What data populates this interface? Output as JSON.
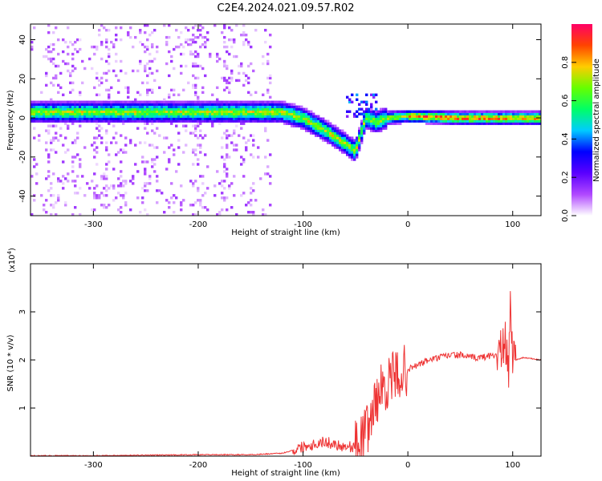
{
  "title": "C2E4.2024.021.09.57.R02",
  "chart_data": [
    {
      "type": "heatmap",
      "xlabel": "Height of straight line (km)",
      "ylabel": "Frequency (Hz)",
      "xlim": [
        -360,
        127
      ],
      "ylim": [
        -50,
        48
      ],
      "xticks": [
        -300,
        -200,
        -100,
        0,
        100
      ],
      "yticks": [
        -40,
        -20,
        0,
        20,
        40
      ],
      "colorbar": {
        "label": "Normalized spectral amplitude",
        "range": [
          0,
          1
        ],
        "ticks": [
          0.0,
          0.2,
          0.4,
          0.6,
          0.8
        ],
        "colormap": [
          "#ffffff",
          "#b048ff",
          "#5a00ff",
          "#0000ff",
          "#00ccff",
          "#00ff66",
          "#66ff00",
          "#ffcc00",
          "#ff4400",
          "#ff0066"
        ]
      },
      "ridge": [
        {
          "x": -350,
          "y": 3
        },
        {
          "x": -300,
          "y": 3
        },
        {
          "x": -200,
          "y": 3
        },
        {
          "x": -150,
          "y": 3
        },
        {
          "x": -120,
          "y": 3
        },
        {
          "x": -100,
          "y": 0
        },
        {
          "x": -80,
          "y": -6
        },
        {
          "x": -60,
          "y": -13
        },
        {
          "x": -50,
          "y": -17
        },
        {
          "x": -40,
          "y": 0
        },
        {
          "x": -30,
          "y": -2
        },
        {
          "x": -20,
          "y": 0
        },
        {
          "x": 0,
          "y": 1
        },
        {
          "x": 50,
          "y": 0
        },
        {
          "x": 90,
          "y": 0
        },
        {
          "x": 127,
          "y": 0
        }
      ]
    },
    {
      "type": "line",
      "xlabel": "Height of straight line (km)",
      "ylabel": "SNR (10 * v/v)",
      "y_multiplier": "(x10",
      "y_multiplier_exp": "4",
      "y_multiplier_close": ")",
      "xlim": [
        -360,
        127
      ],
      "ylim": [
        0,
        4
      ],
      "xticks": [
        -300,
        -200,
        -100,
        0,
        100
      ],
      "yticks": [
        1,
        2,
        3
      ],
      "color": "#ee3333",
      "x": [
        -360,
        -300,
        -250,
        -200,
        -150,
        -120,
        -110,
        -100,
        -90,
        -80,
        -70,
        -60,
        -50,
        -45,
        -40,
        -35,
        -30,
        -25,
        -20,
        -15,
        -10,
        -5,
        0,
        10,
        20,
        30,
        40,
        50,
        60,
        70,
        80,
        85,
        90,
        93,
        96,
        98,
        100,
        103,
        110,
        127
      ],
      "y": [
        0.01,
        0.01,
        0.02,
        0.03,
        0.03,
        0.06,
        0.12,
        0.2,
        0.25,
        0.3,
        0.25,
        0.2,
        0.2,
        0.35,
        0.5,
        0.8,
        1.2,
        1.4,
        1.5,
        1.6,
        1.7,
        1.75,
        1.8,
        1.9,
        2.0,
        2.05,
        2.1,
        2.1,
        2.05,
        2.05,
        2.1,
        2.1,
        2.2,
        2.3,
        1.7,
        3.3,
        2.1,
        2.0,
        2.05,
        2.0
      ]
    }
  ]
}
